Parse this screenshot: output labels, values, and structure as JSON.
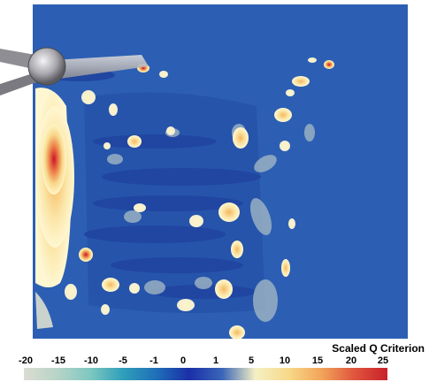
{
  "figure": {
    "colorbar": {
      "title": "Scaled Q Criterion",
      "ticks": [
        "-20",
        "-15",
        "-10",
        "-5",
        "-1",
        "0",
        "1",
        "5",
        "10",
        "15",
        "20",
        "25"
      ],
      "stops": [
        "#dcdcd2",
        "#b8d4c8",
        "#7ec8c0",
        "#2f9fba",
        "#1f6fb8",
        "#1b2fa8",
        "#3a66b8",
        "#f4f0c4",
        "#f8d98a",
        "#f2a55a",
        "#e0553e",
        "#c8202a"
      ]
    },
    "colors": {
      "background": "#2c5fb3",
      "deep_blue": "#1d3e9c",
      "warm_light": "#fff5c6",
      "warm_mid": "#f7c36a",
      "warm_hot": "#c8142a",
      "gray": "#c8c8cc"
    },
    "objects": [
      "turbine-hub",
      "rotor-blade"
    ]
  }
}
